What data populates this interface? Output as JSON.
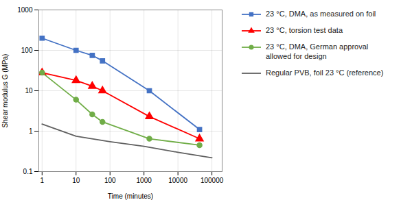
{
  "chart_data": {
    "type": "line",
    "xlabel": "Time (minutes)",
    "ylabel": "Shear modulus G (MPa)",
    "log": true,
    "grid": true,
    "legend": "right",
    "xlim": [
      0.8,
      200000
    ],
    "ylim": [
      0.1,
      1000
    ],
    "xticks": [
      1,
      10,
      100,
      1000,
      10000,
      100000
    ],
    "yticks": [
      0.1,
      1,
      10,
      100,
      1000
    ],
    "series": [
      {
        "name": "23 °C, DMA, as measured on foil",
        "color": "#4472C4",
        "marker": "square",
        "x": [
          1,
          10,
          30,
          60,
          1440,
          43200
        ],
        "values": [
          200,
          100,
          75,
          55,
          10,
          1.1
        ]
      },
      {
        "name": "23 °C, torsion test data",
        "color": "#FF0000",
        "marker": "triangle",
        "x": [
          1,
          10,
          30,
          60,
          1440,
          43200
        ],
        "values": [
          28,
          18,
          13,
          10,
          2.3,
          0.65
        ]
      },
      {
        "name": "23 °C, DMA, German approval\nallowed for design",
        "color": "#70AD47",
        "marker": "circle",
        "x": [
          1,
          10,
          30,
          60,
          1440,
          43200
        ],
        "values": [
          28,
          6,
          2.6,
          1.7,
          0.65,
          0.45
        ]
      },
      {
        "name": "Regular PVB, foil 23 °C (reference)",
        "color": "#606060",
        "x": [
          1,
          10,
          100,
          1000,
          10000,
          100000
        ],
        "values": [
          1.5,
          0.75,
          0.55,
          0.42,
          0.3,
          0.22
        ]
      }
    ]
  }
}
